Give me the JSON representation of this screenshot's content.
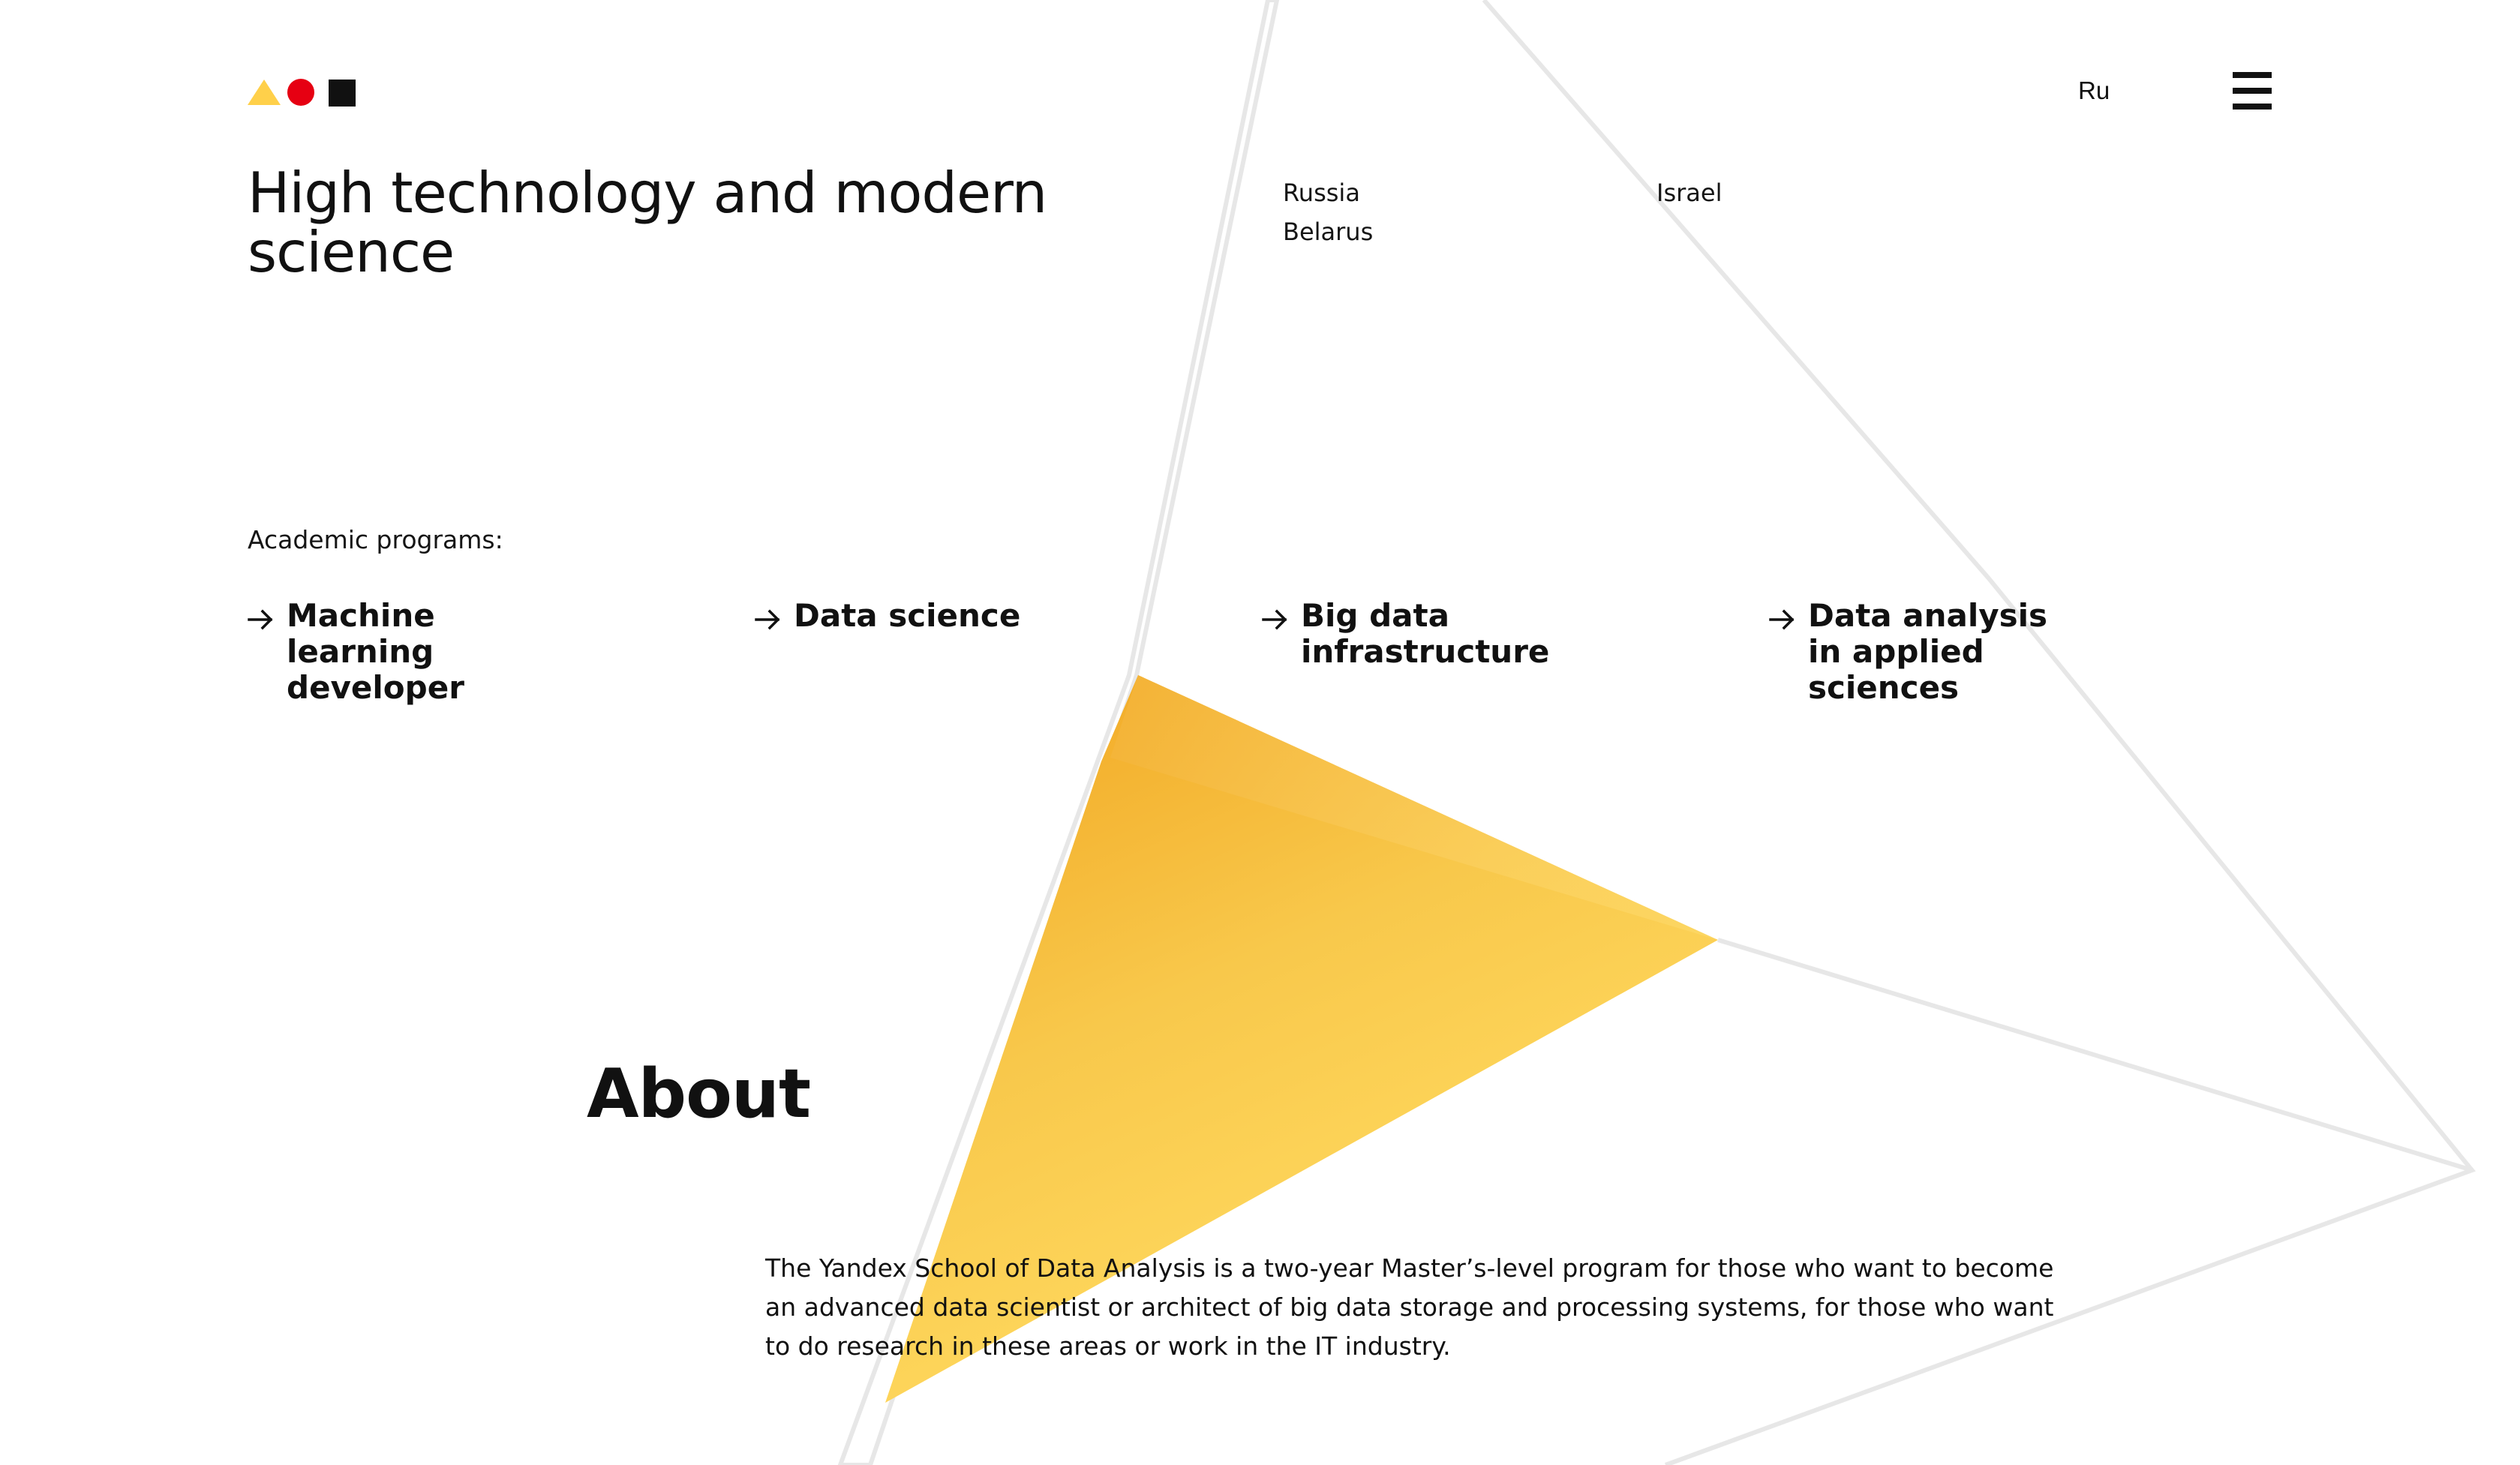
{
  "header": {
    "logo_name": "Yandex School of Data Analysis logo",
    "language_label": "Ru",
    "menu_icon": "menu-icon"
  },
  "hero": {
    "title": "High technology and modern science"
  },
  "countries": {
    "russia": "Russia",
    "belarus": "Belarus",
    "israel": "Israel"
  },
  "programs": {
    "label": "Academic programs:",
    "items": [
      {
        "label": "Machine learning developer",
        "icon": "arrow-right-icon"
      },
      {
        "label": "Data science",
        "icon": "arrow-right-icon"
      },
      {
        "label": "Big data infrastructure",
        "icon": "arrow-right-icon"
      },
      {
        "label": "Data analysis in applied sciences",
        "icon": "arrow-right-icon"
      }
    ]
  },
  "about": {
    "title": "About",
    "text": "The Yandex School of Data Analysis is a two-year Master’s-level program for those who want to become an advanced data scientist or architect of big data storage and processing systems, for those who want to do research in these areas or work in the IT industry."
  },
  "colors": {
    "logo_yellow": "#FFD04A",
    "logo_red": "#E60012",
    "logo_black": "#111111",
    "accent_yellow": "#FFD65E",
    "line_gray": "#E7E7E7"
  }
}
